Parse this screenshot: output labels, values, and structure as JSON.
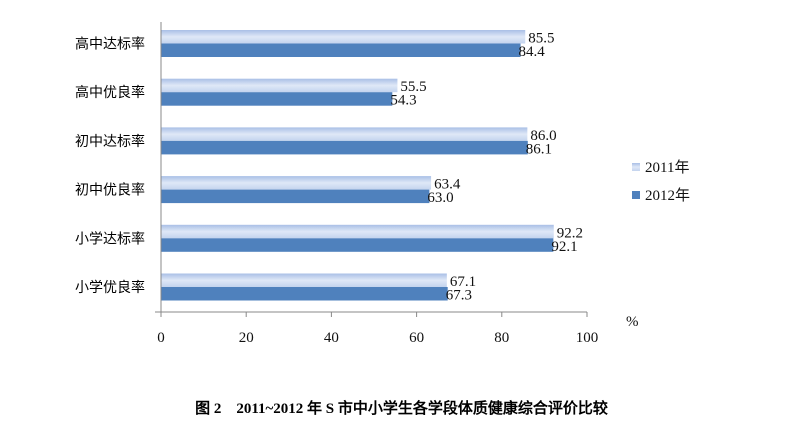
{
  "chart_data": {
    "type": "bar",
    "orientation": "horizontal",
    "categories": [
      "高中达标率",
      "高中优良率",
      "初中达标率",
      "初中优良率",
      "小学达标率",
      "小学优良率"
    ],
    "series": [
      {
        "name": "2011年",
        "values": [
          85.5,
          55.5,
          86.0,
          63.4,
          92.2,
          67.1
        ],
        "color": "#c9d7ef"
      },
      {
        "name": "2012年",
        "values": [
          84.4,
          54.3,
          86.1,
          63.0,
          92.1,
          67.3
        ],
        "color": "#4f81bd"
      }
    ],
    "value_labels": [
      [
        "85.5",
        "55.5",
        "86.0",
        "63.4",
        "92.2",
        "67.1"
      ],
      [
        "84.4",
        "54.3",
        "86.1",
        "63.0",
        "92.1",
        "67.3"
      ]
    ],
    "xlim": [
      0,
      100
    ],
    "xticks": [
      "0",
      "20",
      "40",
      "60",
      "80",
      "100"
    ],
    "xunit": "%",
    "legend": "right",
    "grid": false,
    "title": "图 2　2011~2012 年 S 市中小学生各学段体质健康综合评价比较"
  }
}
